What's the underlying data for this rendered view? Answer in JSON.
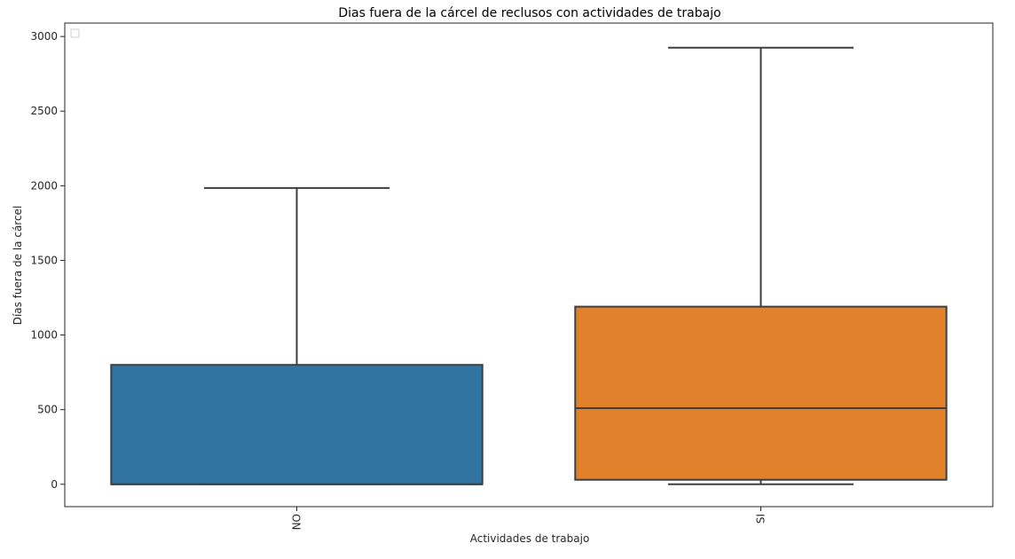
{
  "chart_data": {
    "type": "box",
    "title": "Dias fuera de la cárcel de reclusos con actividades de trabajo",
    "xlabel": "Actividades de trabajo",
    "ylabel": "Días fuera de la cárcel",
    "ylim": [
      -150,
      3090
    ],
    "yticks": [
      0,
      500,
      1000,
      1500,
      2000,
      2500,
      3000
    ],
    "legend": "top-left (empty)",
    "grid": false,
    "categories": [
      "NO",
      "SI"
    ],
    "colors": [
      "#3274a1",
      "#e1812c"
    ],
    "boxes": [
      {
        "category": "NO",
        "whisker_low": 0,
        "q1": 0,
        "median": 0,
        "q3": 800,
        "whisker_high": 1985
      },
      {
        "category": "SI",
        "whisker_low": 0,
        "q1": 30,
        "median": 510,
        "q3": 1190,
        "whisker_high": 2925
      }
    ]
  }
}
